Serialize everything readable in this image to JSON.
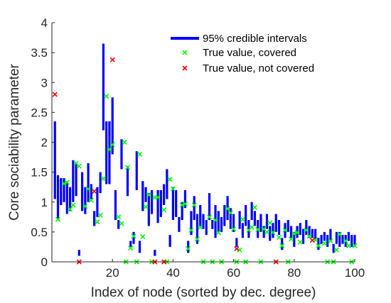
{
  "chart_data": {
    "type": "errorbar",
    "title": "",
    "xlabel": "Index of node (sorted by dec. degree)",
    "ylabel": "Core sociability parameter",
    "xlim": [
      0,
      100
    ],
    "ylim": [
      0,
      4
    ],
    "xticks": [
      20,
      40,
      60,
      80,
      100
    ],
    "yticks": [
      0,
      0.5,
      1,
      1.5,
      2,
      2.5,
      3,
      3.5,
      4
    ],
    "ytick_labels": [
      "0",
      "0.5",
      "1",
      "1.5",
      "2",
      "2.5",
      "3",
      "3.5",
      "4"
    ],
    "grid": false,
    "legend_position": "top-right",
    "colors": {
      "interval": "#0000ff",
      "covered": "#00ff00",
      "not_covered": "#ff0000"
    },
    "series": [
      {
        "name": "95% credible intervals",
        "kind": "interval"
      },
      {
        "name": "True value, covered",
        "kind": "marker"
      },
      {
        "name": "True value, not covered",
        "kind": "marker"
      }
    ],
    "intervals": [
      [
        1,
        1.05,
        2.35
      ],
      [
        2,
        0.7,
        1.45
      ],
      [
        3,
        0.95,
        1.4
      ],
      [
        4,
        1.0,
        1.4
      ],
      [
        5,
        0.8,
        1.35
      ],
      [
        6,
        0.85,
        1.25
      ],
      [
        7,
        1.0,
        1.7
      ],
      [
        8,
        1.1,
        1.65
      ],
      [
        9,
        0.1,
        0.2
      ],
      [
        10,
        0.85,
        1.5
      ],
      [
        11,
        0.8,
        1.25
      ],
      [
        12,
        1.0,
        1.65
      ],
      [
        13,
        1.05,
        1.3
      ],
      [
        14,
        0.6,
        0.85
      ],
      [
        15,
        0.75,
        1.25
      ],
      [
        16,
        1.15,
        1.5
      ],
      [
        17,
        2.2,
        3.65
      ],
      [
        18,
        1.3,
        2.35
      ],
      [
        19,
        1.3,
        2.35
      ],
      [
        20,
        1.8,
        2.75
      ],
      [
        21,
        0.7,
        1.2
      ],
      [
        22,
        0.55,
        0.7
      ],
      [
        23,
        1.55,
        2.05
      ],
      [
        24,
        0.0,
        0.0
      ],
      [
        25,
        1.1,
        1.6
      ],
      [
        26,
        0.25,
        0.35
      ],
      [
        27,
        0.3,
        0.5
      ],
      [
        28,
        1.2,
        1.85
      ],
      [
        29,
        0.15,
        0.35
      ],
      [
        30,
        0.85,
        1.35
      ],
      [
        31,
        1.0,
        1.25
      ],
      [
        32,
        0.6,
        1.15
      ],
      [
        33,
        0.8,
        1.2
      ],
      [
        34,
        0.1,
        0.2
      ],
      [
        35,
        0.65,
        1.2
      ],
      [
        36,
        0.75,
        1.2
      ],
      [
        37,
        0.95,
        1.3
      ],
      [
        38,
        1.05,
        1.55
      ],
      [
        39,
        0.25,
        0.45
      ],
      [
        40,
        0.7,
        1.25
      ],
      [
        41,
        0.75,
        1.2
      ],
      [
        42,
        0.5,
        0.75
      ],
      [
        43,
        0.7,
        1.0
      ],
      [
        44,
        0.9,
        1.2
      ],
      [
        45,
        0.15,
        0.35
      ],
      [
        46,
        0.45,
        0.85
      ],
      [
        47,
        0.7,
        1.1
      ],
      [
        48,
        0.3,
        0.8
      ],
      [
        49,
        0.6,
        0.95
      ],
      [
        50,
        0.55,
        0.8
      ],
      [
        51,
        0.45,
        0.7
      ],
      [
        52,
        0.7,
        1.15
      ],
      [
        53,
        0.55,
        0.7
      ],
      [
        54,
        0.4,
        0.95
      ],
      [
        55,
        0.5,
        0.85
      ],
      [
        56,
        0.5,
        0.75
      ],
      [
        57,
        0.6,
        0.95
      ],
      [
        58,
        0.7,
        1.1
      ],
      [
        59,
        0.55,
        0.9
      ],
      [
        60,
        0.5,
        0.8
      ],
      [
        61,
        0.25,
        0.4
      ],
      [
        62,
        0.55,
        0.85
      ],
      [
        63,
        0.4,
        0.65
      ],
      [
        64,
        0.6,
        0.95
      ],
      [
        65,
        0.4,
        0.7
      ],
      [
        66,
        0.7,
        1.0
      ],
      [
        67,
        0.6,
        0.85
      ],
      [
        68,
        0.4,
        0.7
      ],
      [
        69,
        0.5,
        0.8
      ],
      [
        70,
        0.4,
        0.6
      ],
      [
        71,
        0.55,
        0.8
      ],
      [
        72,
        0.35,
        0.6
      ],
      [
        73,
        0.4,
        0.65
      ],
      [
        74,
        0.5,
        0.8
      ],
      [
        75,
        0.45,
        0.7
      ],
      [
        76,
        0.2,
        0.4
      ],
      [
        77,
        0.4,
        0.65
      ],
      [
        78,
        0.5,
        0.7
      ],
      [
        79,
        0.4,
        0.6
      ],
      [
        80,
        0.25,
        0.5
      ],
      [
        81,
        0.4,
        0.6
      ],
      [
        82,
        0.45,
        0.65
      ],
      [
        83,
        0.3,
        0.55
      ],
      [
        84,
        0.45,
        0.7
      ],
      [
        85,
        0.4,
        0.6
      ],
      [
        86,
        0.4,
        0.55
      ],
      [
        87,
        0.35,
        0.55
      ],
      [
        88,
        0.2,
        0.4
      ],
      [
        89,
        0.3,
        0.45
      ],
      [
        90,
        0.35,
        0.5
      ],
      [
        91,
        0.25,
        0.45
      ],
      [
        92,
        0.35,
        0.55
      ],
      [
        93,
        0.15,
        0.3
      ],
      [
        94,
        0.3,
        0.5
      ],
      [
        95,
        0.25,
        0.5
      ],
      [
        96,
        0.3,
        0.45
      ],
      [
        97,
        0.25,
        0.45
      ],
      [
        98,
        0.35,
        0.5
      ],
      [
        99,
        0.25,
        0.45
      ],
      [
        100,
        0.25,
        0.45
      ]
    ],
    "covered": [
      [
        2,
        0.71
      ],
      [
        4,
        1.31
      ],
      [
        5,
        1.33
      ],
      [
        6,
        0.88
      ],
      [
        7,
        0.95
      ],
      [
        8,
        1.65
      ],
      [
        9,
        1.6
      ],
      [
        11,
        0.93
      ],
      [
        12,
        1.22
      ],
      [
        13,
        1.03
      ],
      [
        15,
        0.67
      ],
      [
        16,
        0.78
      ],
      [
        17,
        1.39
      ],
      [
        18,
        2.77
      ],
      [
        19,
        1.88
      ],
      [
        20,
        1.96
      ],
      [
        22,
        0.75
      ],
      [
        23,
        0.64
      ],
      [
        24,
        2.0
      ],
      [
        24.5,
        0.0
      ],
      [
        25,
        1.58
      ],
      [
        26,
        0.23
      ],
      [
        27,
        0.43
      ],
      [
        28,
        0.0
      ],
      [
        29,
        1.8
      ],
      [
        30,
        0.42
      ],
      [
        31,
        0.92
      ],
      [
        32,
        1.12
      ],
      [
        33,
        0.0
      ],
      [
        34,
        1.08
      ],
      [
        35,
        1.08
      ],
      [
        37,
        0.87
      ],
      [
        38,
        0.0
      ],
      [
        39,
        1.38
      ],
      [
        40,
        1.22
      ],
      [
        43,
        0.95
      ],
      [
        44,
        0.97
      ],
      [
        45,
        0.22
      ],
      [
        46,
        0.53
      ],
      [
        47,
        0.95
      ],
      [
        48,
        0.38
      ],
      [
        49,
        0.58
      ],
      [
        50,
        0.0
      ],
      [
        52,
        0.75
      ],
      [
        53,
        0.0
      ],
      [
        54,
        0.7
      ],
      [
        55,
        0.49
      ],
      [
        56,
        0.0
      ],
      [
        58,
        0.89
      ],
      [
        59,
        0.82
      ],
      [
        60,
        0.55
      ],
      [
        61,
        0.0
      ],
      [
        62,
        0.2
      ],
      [
        63,
        0.71
      ],
      [
        64,
        0.0
      ],
      [
        65,
        0.53
      ],
      [
        66,
        0.58
      ],
      [
        67,
        0.91
      ],
      [
        68,
        0.54
      ],
      [
        69,
        0.0
      ],
      [
        70,
        0.55
      ],
      [
        71,
        0.5
      ],
      [
        72,
        0.65
      ],
      [
        73,
        0.49
      ],
      [
        75,
        0.41
      ],
      [
        76,
        0.27
      ],
      [
        77,
        0.53
      ],
      [
        78,
        0.0
      ],
      [
        79,
        0.38
      ],
      [
        80,
        0.47
      ],
      [
        81,
        0.49
      ],
      [
        82,
        0.33
      ],
      [
        84,
        0.53
      ],
      [
        85,
        0.43
      ],
      [
        87,
        0.37
      ],
      [
        88,
        0.27
      ],
      [
        90,
        0.31
      ],
      [
        91,
        0.0
      ],
      [
        92,
        0.35
      ],
      [
        93,
        0.0
      ],
      [
        94,
        0.2
      ],
      [
        95,
        0.46
      ],
      [
        97,
        0.35
      ],
      [
        98,
        0.27
      ],
      [
        99,
        0.0
      ],
      [
        100,
        0.27
      ]
    ],
    "not_covered": [
      [
        1,
        2.8
      ],
      [
        9,
        0.0
      ],
      [
        14,
        1.18
      ],
      [
        20,
        3.38
      ],
      [
        34,
        0.0
      ],
      [
        37,
        0.0
      ],
      [
        61,
        0.22
      ],
      [
        74,
        0.0
      ],
      [
        86,
        0.36
      ]
    ]
  }
}
